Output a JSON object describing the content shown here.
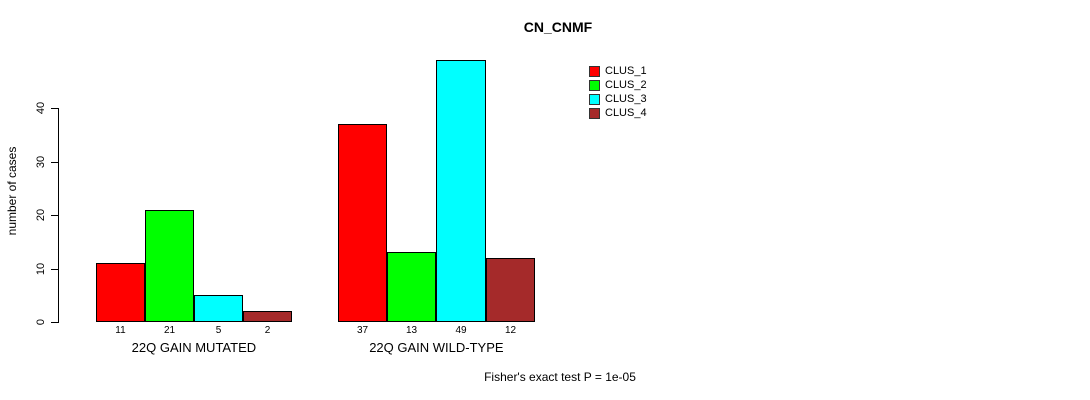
{
  "title": "CN_CNMF",
  "ylabel": "number of cases",
  "footer": "Fisher's exact test P = 1e-05",
  "chart_data": {
    "type": "bar",
    "title": "CN_CNMF",
    "xlabel": "",
    "ylabel": "number of cases",
    "ylim": [
      0,
      40
    ],
    "yticks": [
      0,
      10,
      20,
      30,
      40
    ],
    "grid": false,
    "legend_position": "top-right",
    "categories": [
      "22Q GAIN MUTATED",
      "22Q GAIN WILD-TYPE"
    ],
    "series": [
      {
        "name": "CLUS_1",
        "color": "#FF0000",
        "values": [
          11,
          37
        ]
      },
      {
        "name": "CLUS_2",
        "color": "#00FF00",
        "values": [
          21,
          13
        ]
      },
      {
        "name": "CLUS_3",
        "color": "#00FFFF",
        "values": [
          5,
          49
        ]
      },
      {
        "name": "CLUS_4",
        "color": "#A52A2A",
        "values": [
          2,
          12
        ]
      }
    ],
    "bar_value_labels": [
      [
        11,
        21,
        5,
        2
      ],
      [
        37,
        13,
        49,
        12
      ]
    ],
    "annotation": "Fisher's exact test P = 1e-05"
  }
}
